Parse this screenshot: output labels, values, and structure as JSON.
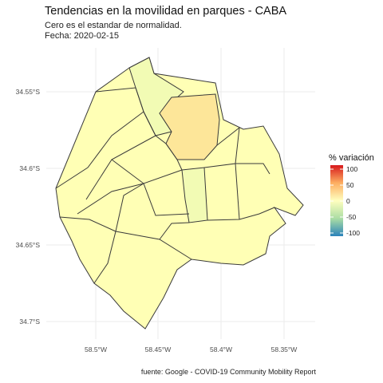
{
  "title": "Tendencias en la movilidad en parques - CABA",
  "subtitle_line1": "Cero es el estandar de normalidad.",
  "subtitle_line2": "Fecha: 2020-02-15",
  "caption": "fuente: Google - COVID-19 Community Mobility Report",
  "legend": {
    "title": "% variación",
    "ticks": [
      "100",
      "50",
      "0",
      "-50",
      "-100"
    ],
    "colors": [
      "#d7191c",
      "#fdae61",
      "#ffffbf",
      "#abdda4",
      "#2b83ba"
    ]
  },
  "axes": {
    "x_ticks": [
      "58.5°W",
      "58.45°W",
      "58.4°W",
      "58.35°W"
    ],
    "y_ticks": [
      "34.55°S",
      "34.6°S",
      "34.65°S",
      "34.7°S"
    ]
  },
  "colors": {
    "region_default": "#ffffb5",
    "region_light_green": "#f2fbb4",
    "region_orange": "#fde699",
    "outline": "#3a3a3a",
    "grid": "#ebebeb"
  },
  "chart_data": {
    "type": "map",
    "fill_variable": "% variación",
    "scale": [
      -100,
      100
    ],
    "regions_shaded_notably": [
      {
        "shade": "orange",
        "approx_value": 25
      },
      {
        "shade": "light green",
        "approx_value": -10
      }
    ],
    "other_regions_approx_value": 0
  }
}
